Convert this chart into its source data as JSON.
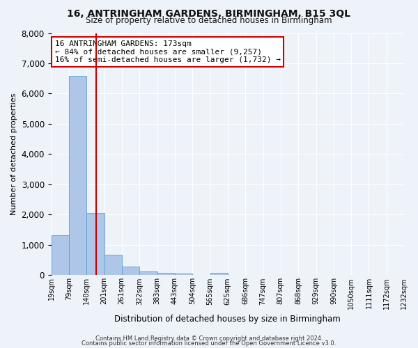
{
  "title": "16, ANTRINGHAM GARDENS, BIRMINGHAM, B15 3QL",
  "subtitle": "Size of property relative to detached houses in Birmingham",
  "xlabel": "Distribution of detached houses by size in Birmingham",
  "ylabel": "Number of detached properties",
  "footnote1": "Contains HM Land Registry data © Crown copyright and database right 2024.",
  "footnote2": "Contains public sector information licensed under the Open Government Licence v3.0.",
  "annotation_line1": "16 ANTRINGHAM GARDENS: 173sqm",
  "annotation_line2": "← 84% of detached houses are smaller (9,257)",
  "annotation_line3": "16% of semi-detached houses are larger (1,732) →",
  "bar_edges": [
    19,
    79,
    140,
    201,
    261,
    322,
    383,
    443,
    504,
    565,
    625,
    686,
    747,
    807,
    868,
    929,
    990,
    1050,
    1111,
    1172,
    1232
  ],
  "bar_heights": [
    1310,
    6580,
    2060,
    670,
    295,
    130,
    80,
    50,
    0,
    75,
    0,
    0,
    0,
    0,
    0,
    0,
    0,
    0,
    0,
    0
  ],
  "bar_color": "#aec6e8",
  "bar_edge_color": "#5a9fd4",
  "vline_x": 173,
  "vline_color": "#cc0000",
  "ylim": [
    0,
    8000
  ],
  "yticks": [
    0,
    1000,
    2000,
    3000,
    4000,
    5000,
    6000,
    7000,
    8000
  ],
  "bg_color": "#eef2f9",
  "grid_color": "#ffffff",
  "title_fontsize": 10,
  "subtitle_fontsize": 8.5,
  "xlabel_fontsize": 8.5,
  "ylabel_fontsize": 8,
  "annotation_fontsize": 8,
  "tick_label_fontsize": 7,
  "footnote_fontsize": 6
}
